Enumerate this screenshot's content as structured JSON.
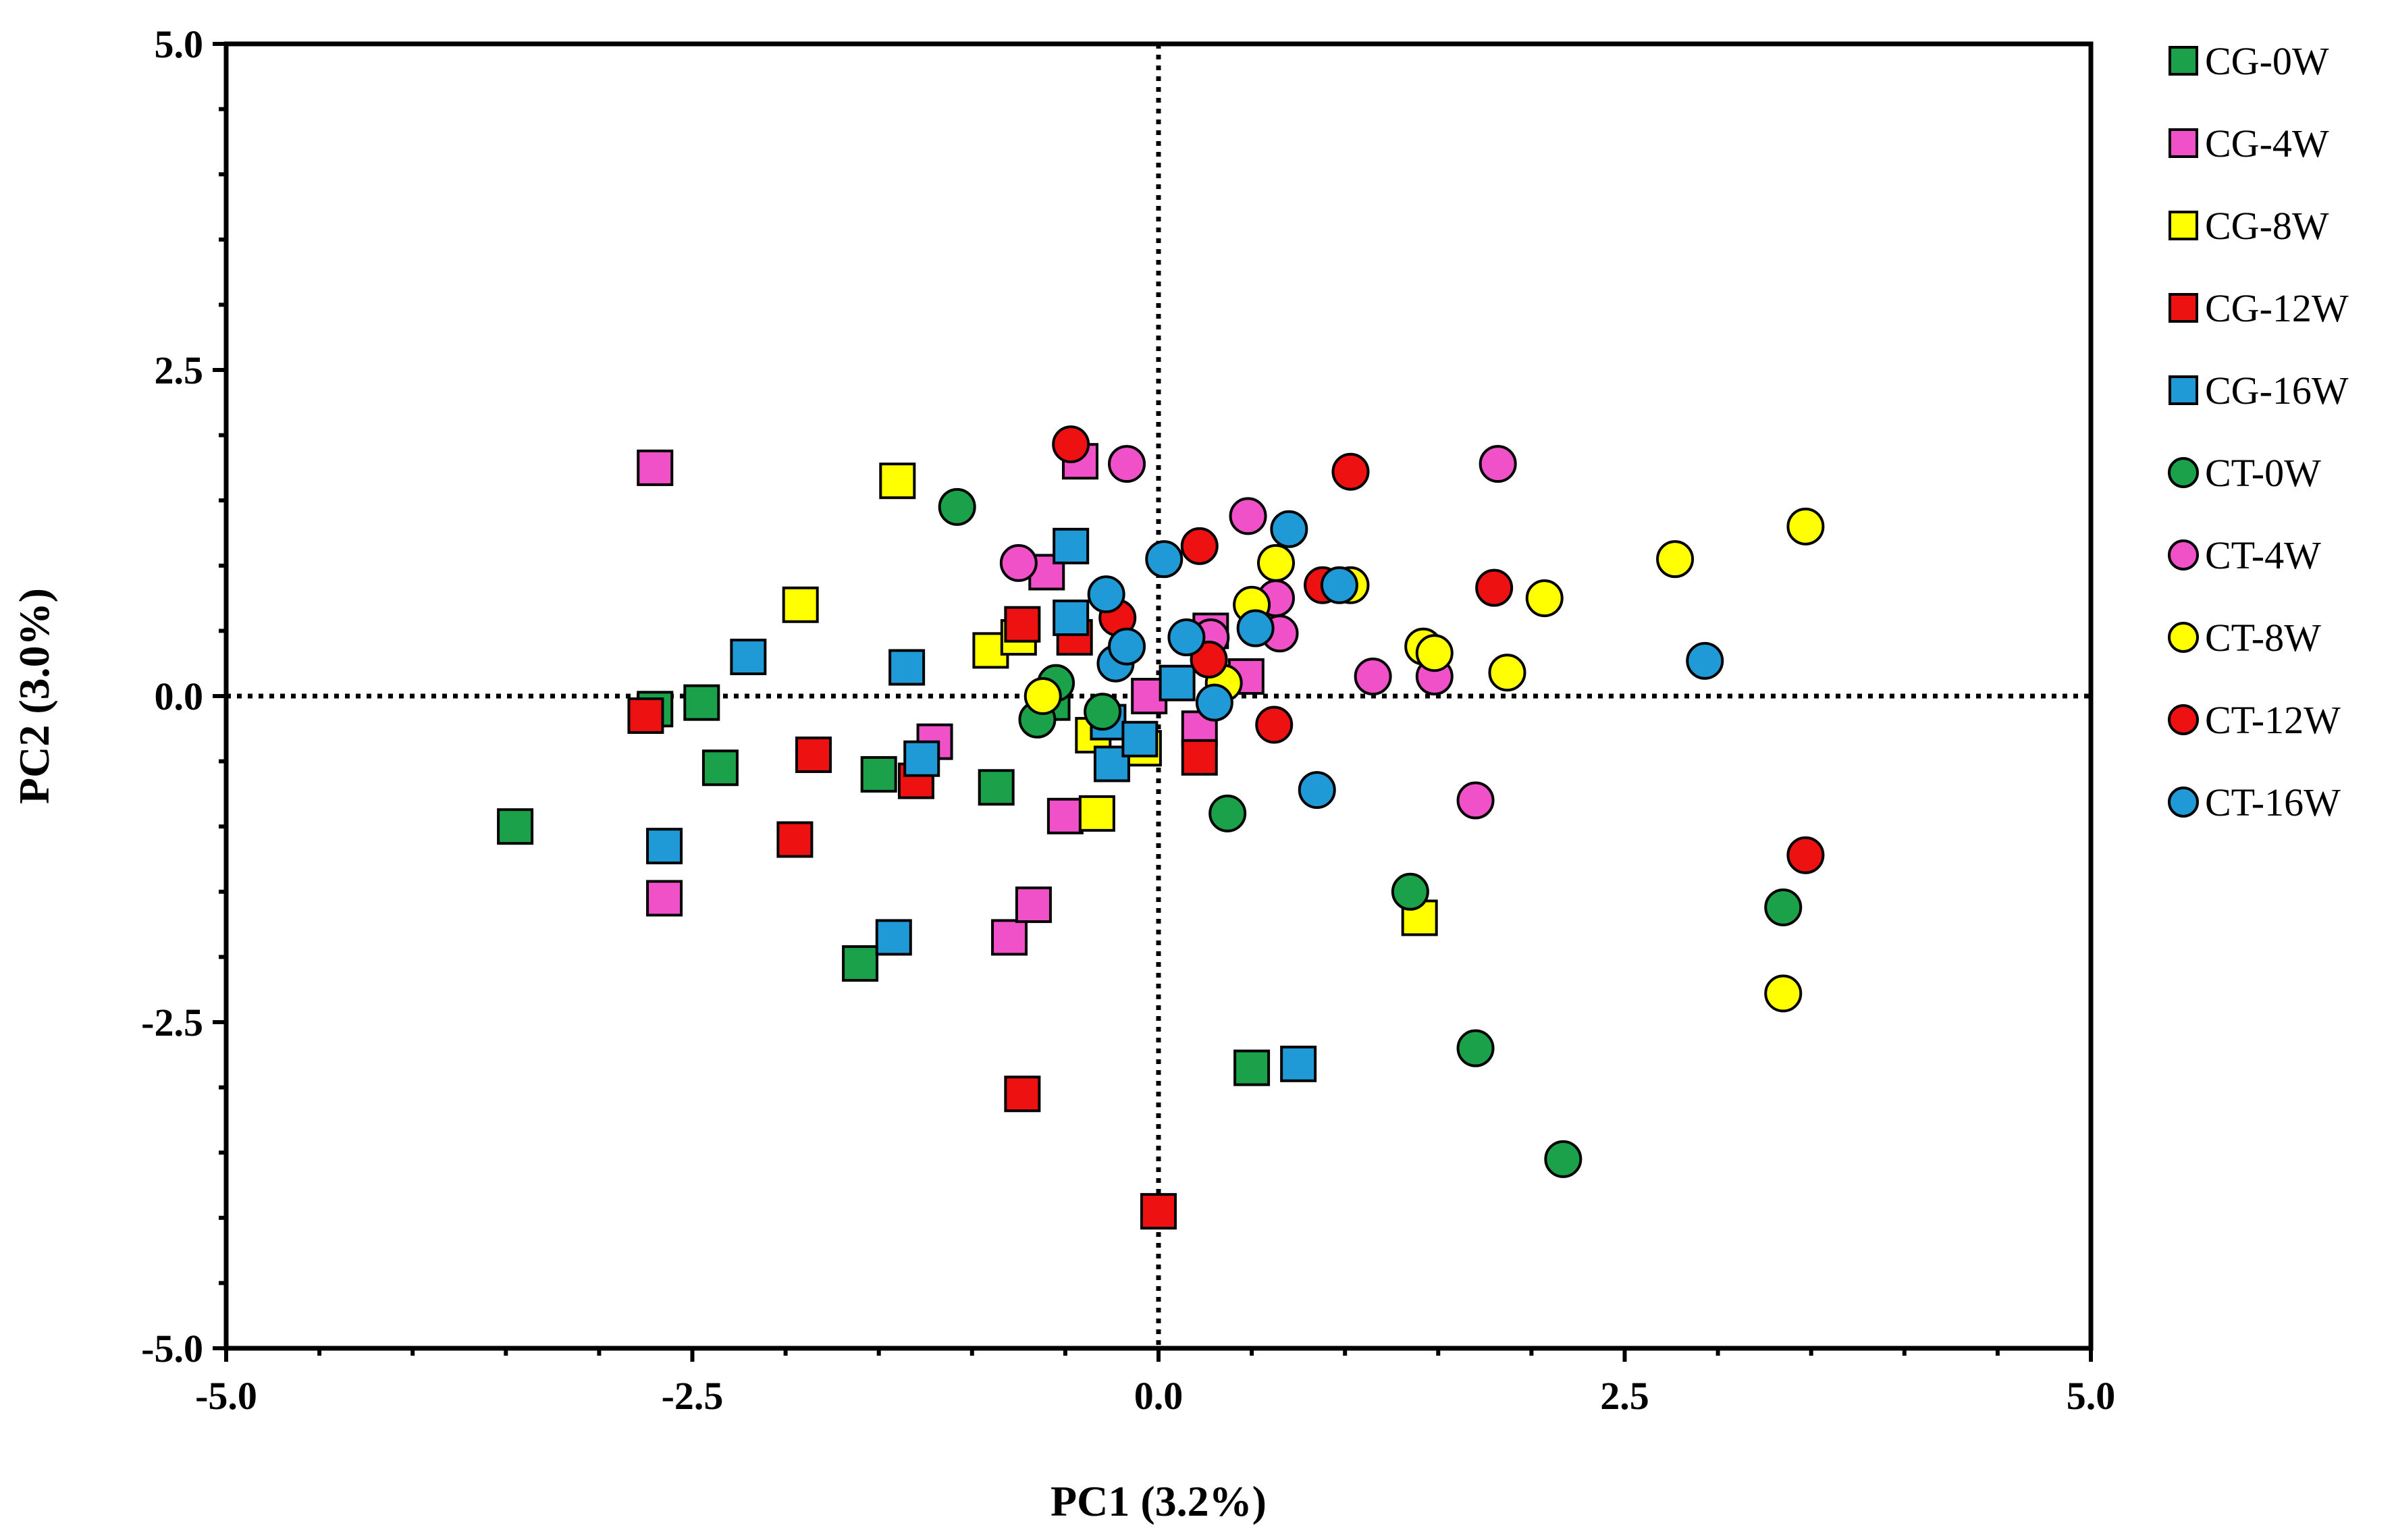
{
  "chart_data": {
    "type": "scatter",
    "xlabel": "PC1 (3.2%)",
    "ylabel": "PC2 (3.0%)",
    "xlim": [
      -5.0,
      5.0
    ],
    "ylim": [
      -5.0,
      5.0
    ],
    "x_ticks": [
      "-5.0",
      "-2.5",
      "0.0",
      "2.5",
      "5.0"
    ],
    "y_ticks": [
      "5.0",
      "2.5",
      "0.0",
      "-2.5",
      "-5.0"
    ],
    "reference_lines": {
      "x": 0,
      "y": 0,
      "style": "dotted"
    },
    "grid": false,
    "legend_position": "right",
    "series": [
      {
        "name": "CG-0W",
        "marker": "square",
        "color": "#1aa14a",
        "points": [
          [
            -3.45,
            -1.0
          ],
          [
            -2.7,
            -0.1
          ],
          [
            -2.45,
            -0.05
          ],
          [
            -2.35,
            -0.55
          ],
          [
            -1.6,
            -2.05
          ],
          [
            -1.5,
            -0.6
          ],
          [
            -0.87,
            -0.7
          ],
          [
            -0.57,
            -0.05
          ],
          [
            0.5,
            -2.85
          ]
        ]
      },
      {
        "name": "CG-4W",
        "marker": "square",
        "color": "#f050c8",
        "points": [
          [
            -2.7,
            1.75
          ],
          [
            -2.65,
            -1.55
          ],
          [
            -1.2,
            -0.35
          ],
          [
            -0.8,
            -1.85
          ],
          [
            -0.67,
            -1.6
          ],
          [
            -0.6,
            0.95
          ],
          [
            -0.5,
            -0.92
          ],
          [
            -0.42,
            1.8
          ],
          [
            -0.05,
            0.0
          ],
          [
            0.22,
            -0.25
          ],
          [
            0.28,
            0.5
          ],
          [
            0.47,
            0.15
          ]
        ]
      },
      {
        "name": "CG-8W",
        "marker": "square",
        "color": "#ffff00",
        "points": [
          [
            -1.92,
            0.7
          ],
          [
            -1.4,
            1.65
          ],
          [
            -0.9,
            0.35
          ],
          [
            -0.75,
            0.45
          ],
          [
            -0.35,
            -0.3
          ],
          [
            -0.33,
            -0.9
          ],
          [
            -0.08,
            -0.4
          ],
          [
            1.4,
            -1.7
          ]
        ]
      },
      {
        "name": "CG-12W",
        "marker": "square",
        "color": "#ee1111",
        "points": [
          [
            -2.75,
            -0.15
          ],
          [
            -1.95,
            -1.1
          ],
          [
            -1.85,
            -0.45
          ],
          [
            -1.3,
            -0.65
          ],
          [
            -0.73,
            -3.05
          ],
          [
            -0.73,
            0.55
          ],
          [
            -0.45,
            0.45
          ],
          [
            0.0,
            -3.95
          ],
          [
            0.22,
            -0.47
          ]
        ]
      },
      {
        "name": "CG-16W",
        "marker": "square",
        "color": "#1f9ad6",
        "points": [
          [
            -2.65,
            -1.15
          ],
          [
            -2.2,
            0.3
          ],
          [
            -1.35,
            0.22
          ],
          [
            -1.42,
            -1.85
          ],
          [
            -1.27,
            -0.48
          ],
          [
            -0.47,
            0.6
          ],
          [
            -0.47,
            1.15
          ],
          [
            -0.27,
            -0.2
          ],
          [
            -0.25,
            -0.52
          ],
          [
            -0.1,
            -0.33
          ],
          [
            0.1,
            0.1
          ],
          [
            0.75,
            -2.82
          ]
        ]
      },
      {
        "name": "CT-0W",
        "marker": "circle",
        "color": "#1aa14a",
        "points": [
          [
            -1.08,
            1.45
          ],
          [
            -0.65,
            -0.18
          ],
          [
            -0.55,
            0.1
          ],
          [
            -0.3,
            -0.12
          ],
          [
            0.37,
            -0.9
          ],
          [
            1.35,
            -1.5
          ],
          [
            1.7,
            -2.7
          ],
          [
            2.17,
            -3.55
          ],
          [
            3.35,
            -1.62
          ]
        ]
      },
      {
        "name": "CT-4W",
        "marker": "circle",
        "color": "#f050c8",
        "points": [
          [
            -0.75,
            1.02
          ],
          [
            -0.17,
            1.78
          ],
          [
            0.28,
            0.45
          ],
          [
            0.48,
            1.38
          ],
          [
            0.63,
            0.75
          ],
          [
            0.65,
            0.48
          ],
          [
            1.15,
            0.15
          ],
          [
            1.48,
            0.15
          ],
          [
            1.7,
            -0.8
          ],
          [
            1.82,
            1.78
          ]
        ]
      },
      {
        "name": "CT-8W",
        "marker": "circle",
        "color": "#ffff00",
        "points": [
          [
            -0.62,
            0.0
          ],
          [
            0.35,
            0.1
          ],
          [
            0.5,
            0.7
          ],
          [
            0.63,
            1.02
          ],
          [
            1.03,
            0.85
          ],
          [
            1.42,
            0.38
          ],
          [
            1.48,
            0.33
          ],
          [
            1.87,
            0.18
          ],
          [
            2.07,
            0.75
          ],
          [
            2.77,
            1.05
          ],
          [
            3.35,
            -2.28
          ],
          [
            3.47,
            1.3
          ]
        ]
      },
      {
        "name": "CT-12W",
        "marker": "circle",
        "color": "#ee1111",
        "points": [
          [
            -0.47,
            1.93
          ],
          [
            -0.22,
            0.6
          ],
          [
            0.22,
            1.15
          ],
          [
            0.27,
            0.28
          ],
          [
            0.62,
            -0.22
          ],
          [
            0.88,
            0.85
          ],
          [
            1.03,
            1.72
          ],
          [
            1.8,
            0.83
          ],
          [
            3.47,
            -1.22
          ]
        ]
      },
      {
        "name": "CT-16W",
        "marker": "circle",
        "color": "#1f9ad6",
        "points": [
          [
            -0.28,
            0.78
          ],
          [
            -0.23,
            0.25
          ],
          [
            -0.17,
            0.38
          ],
          [
            0.03,
            1.05
          ],
          [
            0.15,
            0.45
          ],
          [
            0.3,
            -0.05
          ],
          [
            0.52,
            0.52
          ],
          [
            0.7,
            1.28
          ],
          [
            0.85,
            -0.72
          ],
          [
            0.97,
            0.85
          ],
          [
            2.93,
            0.27
          ]
        ]
      }
    ]
  }
}
